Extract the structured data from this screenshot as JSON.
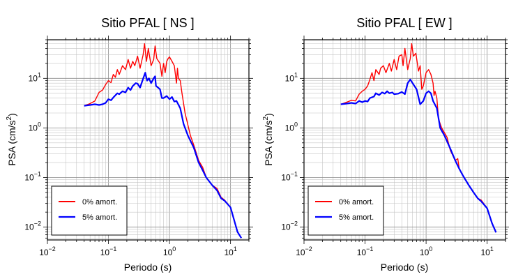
{
  "chart_data": [
    {
      "type": "line",
      "title": "Sitio PFAL [ NS ]",
      "xlabel": "Periodo (s)",
      "ylabel": "PSA (cm/s²)",
      "ylabel_parts": {
        "main": "PSA (cm/s",
        "sup": "2",
        "end": ")"
      },
      "xscale": "log",
      "yscale": "log",
      "xlim": [
        0.01,
        20
      ],
      "ylim": [
        0.0055,
        60
      ],
      "grid": true,
      "legend_position": "bottom-left",
      "x_ticks": [
        {
          "value": 0.01,
          "base": "10",
          "exp": "−2"
        },
        {
          "value": 0.1,
          "base": "10",
          "exp": "−1"
        },
        {
          "value": 1,
          "base": "10",
          "exp": "0"
        },
        {
          "value": 10,
          "base": "10",
          "exp": "1"
        }
      ],
      "y_ticks": [
        {
          "value": 0.01,
          "base": "10",
          "exp": "−2"
        },
        {
          "value": 0.1,
          "base": "10",
          "exp": "−1"
        },
        {
          "value": 1,
          "base": "10",
          "exp": "0"
        },
        {
          "value": 10,
          "base": "10",
          "exp": "1"
        }
      ],
      "series": [
        {
          "name": "0% amort.",
          "color": "#ff0000",
          "points": [
            [
              0.04,
              2.8
            ],
            [
              0.05,
              3.1
            ],
            [
              0.06,
              3.5
            ],
            [
              0.07,
              5.2
            ],
            [
              0.08,
              5.8
            ],
            [
              0.09,
              7.5
            ],
            [
              0.1,
              9
            ],
            [
              0.11,
              8.2
            ],
            [
              0.12,
              12
            ],
            [
              0.13,
              10.5
            ],
            [
              0.14,
              15
            ],
            [
              0.15,
              12
            ],
            [
              0.17,
              18
            ],
            [
              0.19,
              15
            ],
            [
              0.21,
              24
            ],
            [
              0.23,
              16
            ],
            [
              0.25,
              22
            ],
            [
              0.27,
              18
            ],
            [
              0.3,
              28
            ],
            [
              0.33,
              16
            ],
            [
              0.37,
              30
            ],
            [
              0.39,
              50
            ],
            [
              0.42,
              22
            ],
            [
              0.45,
              40
            ],
            [
              0.5,
              18
            ],
            [
              0.55,
              24
            ],
            [
              0.58,
              45
            ],
            [
              0.62,
              25
            ],
            [
              0.7,
              20
            ],
            [
              0.75,
              11
            ],
            [
              0.8,
              20
            ],
            [
              0.85,
              13
            ],
            [
              0.9,
              22
            ],
            [
              0.95,
              25
            ],
            [
              1.0,
              27
            ],
            [
              1.1,
              22
            ],
            [
              1.2,
              18
            ],
            [
              1.3,
              8
            ],
            [
              1.35,
              16
            ],
            [
              1.4,
              10
            ],
            [
              1.5,
              9
            ],
            [
              1.6,
              5
            ],
            [
              1.8,
              2
            ],
            [
              2.2,
              0.7
            ],
            [
              2.5,
              0.45
            ],
            [
              3,
              0.22
            ],
            [
              3.5,
              0.16
            ],
            [
              4,
              0.1
            ],
            [
              5,
              0.07
            ],
            [
              6,
              0.06
            ],
            [
              7,
              0.04
            ],
            [
              8,
              0.035
            ],
            [
              10,
              0.025
            ],
            [
              13,
              0.008
            ],
            [
              15,
              0.006
            ]
          ]
        },
        {
          "name": "5% amort.",
          "color": "#0000ff",
          "points": [
            [
              0.04,
              2.8
            ],
            [
              0.05,
              2.9
            ],
            [
              0.06,
              3.0
            ],
            [
              0.07,
              2.9
            ],
            [
              0.08,
              3.0
            ],
            [
              0.09,
              3.2
            ],
            [
              0.1,
              3.8
            ],
            [
              0.11,
              3.6
            ],
            [
              0.12,
              4.1
            ],
            [
              0.14,
              5
            ],
            [
              0.15,
              4.8
            ],
            [
              0.17,
              5.5
            ],
            [
              0.19,
              5.2
            ],
            [
              0.21,
              6.5
            ],
            [
              0.23,
              5.8
            ],
            [
              0.25,
              7
            ],
            [
              0.28,
              8
            ],
            [
              0.3,
              7.8
            ],
            [
              0.33,
              6.5
            ],
            [
              0.36,
              9
            ],
            [
              0.4,
              13
            ],
            [
              0.43,
              9
            ],
            [
              0.46,
              10
            ],
            [
              0.5,
              8
            ],
            [
              0.55,
              10
            ],
            [
              0.58,
              11
            ],
            [
              0.6,
              7
            ],
            [
              0.65,
              6.5
            ],
            [
              0.7,
              6
            ],
            [
              0.75,
              4
            ],
            [
              0.8,
              4
            ],
            [
              0.9,
              4.4
            ],
            [
              1.0,
              3.8
            ],
            [
              1.1,
              4.2
            ],
            [
              1.2,
              3.4
            ],
            [
              1.3,
              3.5
            ],
            [
              1.5,
              2.5
            ],
            [
              1.7,
              1.2
            ],
            [
              2,
              0.7
            ],
            [
              2.5,
              0.4
            ],
            [
              3,
              0.2
            ],
            [
              3.5,
              0.14
            ],
            [
              4,
              0.1
            ],
            [
              5,
              0.07
            ],
            [
              6,
              0.055
            ],
            [
              7,
              0.038
            ],
            [
              8,
              0.034
            ],
            [
              10,
              0.025
            ],
            [
              13,
              0.008
            ],
            [
              15,
              0.006
            ]
          ]
        }
      ]
    },
    {
      "type": "line",
      "title": "Sitio PFAL [ EW ]",
      "xlabel": "Periodo (s)",
      "ylabel": "PSA (cm/s²)",
      "ylabel_parts": {
        "main": "PSA (cm/s",
        "sup": "2",
        "end": ")"
      },
      "xscale": "log",
      "yscale": "log",
      "xlim": [
        0.01,
        20
      ],
      "ylim": [
        0.0055,
        60
      ],
      "grid": true,
      "legend_position": "bottom-left",
      "x_ticks": [
        {
          "value": 0.01,
          "base": "10",
          "exp": "−2"
        },
        {
          "value": 0.1,
          "base": "10",
          "exp": "−1"
        },
        {
          "value": 1,
          "base": "10",
          "exp": "0"
        },
        {
          "value": 10,
          "base": "10",
          "exp": "1"
        }
      ],
      "y_ticks": [
        {
          "value": 0.01,
          "base": "10",
          "exp": "−2"
        },
        {
          "value": 0.1,
          "base": "10",
          "exp": "−1"
        },
        {
          "value": 1,
          "base": "10",
          "exp": "0"
        },
        {
          "value": 10,
          "base": "10",
          "exp": "1"
        }
      ],
      "series": [
        {
          "name": "0% amort.",
          "color": "#ff0000",
          "points": [
            [
              0.04,
              3.0
            ],
            [
              0.05,
              3.3
            ],
            [
              0.06,
              3.6
            ],
            [
              0.07,
              3.5
            ],
            [
              0.08,
              4.8
            ],
            [
              0.09,
              5.5
            ],
            [
              0.1,
              6
            ],
            [
              0.11,
              7
            ],
            [
              0.12,
              9.5
            ],
            [
              0.13,
              13
            ],
            [
              0.14,
              9
            ],
            [
              0.15,
              15
            ],
            [
              0.17,
              12
            ],
            [
              0.18,
              16
            ],
            [
              0.2,
              18
            ],
            [
              0.22,
              13
            ],
            [
              0.25,
              20
            ],
            [
              0.27,
              14
            ],
            [
              0.3,
              24
            ],
            [
              0.33,
              15
            ],
            [
              0.36,
              28
            ],
            [
              0.4,
              30
            ],
            [
              0.42,
              18
            ],
            [
              0.45,
              40
            ],
            [
              0.5,
              15
            ],
            [
              0.55,
              25
            ],
            [
              0.58,
              50
            ],
            [
              0.62,
              28
            ],
            [
              0.68,
              32
            ],
            [
              0.75,
              14
            ],
            [
              0.8,
              18
            ],
            [
              0.85,
              6
            ],
            [
              0.9,
              7
            ],
            [
              1.0,
              13
            ],
            [
              1.1,
              15
            ],
            [
              1.2,
              12
            ],
            [
              1.3,
              8
            ],
            [
              1.35,
              4.5
            ],
            [
              1.4,
              5.5
            ],
            [
              1.5,
              4
            ],
            [
              1.6,
              1.5
            ],
            [
              1.8,
              1.0
            ],
            [
              2.2,
              0.65
            ],
            [
              2.5,
              0.35
            ],
            [
              3,
              0.22
            ],
            [
              3.3,
              0.24
            ],
            [
              3.5,
              0.15
            ],
            [
              4,
              0.11
            ],
            [
              5,
              0.07
            ],
            [
              6,
              0.05
            ],
            [
              7,
              0.038
            ],
            [
              8,
              0.035
            ],
            [
              10,
              0.024
            ],
            [
              12,
              0.012
            ],
            [
              14,
              0.0078
            ]
          ]
        },
        {
          "name": "5% amort.",
          "color": "#0000ff",
          "points": [
            [
              0.04,
              3.0
            ],
            [
              0.05,
              3.1
            ],
            [
              0.06,
              3.2
            ],
            [
              0.07,
              3.1
            ],
            [
              0.08,
              3.5
            ],
            [
              0.09,
              3.3
            ],
            [
              0.1,
              3.5
            ],
            [
              0.11,
              3.4
            ],
            [
              0.12,
              4
            ],
            [
              0.14,
              4.3
            ],
            [
              0.15,
              5
            ],
            [
              0.17,
              4.6
            ],
            [
              0.19,
              5.2
            ],
            [
              0.21,
              4.9
            ],
            [
              0.23,
              5.5
            ],
            [
              0.25,
              5.0
            ],
            [
              0.28,
              5.2
            ],
            [
              0.3,
              4.8
            ],
            [
              0.35,
              4.9
            ],
            [
              0.4,
              5.3
            ],
            [
              0.45,
              4.8
            ],
            [
              0.5,
              8
            ],
            [
              0.55,
              9.5
            ],
            [
              0.6,
              8
            ],
            [
              0.7,
              6
            ],
            [
              0.8,
              3
            ],
            [
              0.9,
              3.5
            ],
            [
              1.0,
              5
            ],
            [
              1.1,
              5.5
            ],
            [
              1.2,
              5
            ],
            [
              1.3,
              3.5
            ],
            [
              1.5,
              2.5
            ],
            [
              1.7,
              1.0
            ],
            [
              2,
              0.7
            ],
            [
              2.5,
              0.38
            ],
            [
              3,
              0.22
            ],
            [
              3.5,
              0.15
            ],
            [
              4,
              0.11
            ],
            [
              5,
              0.07
            ],
            [
              6,
              0.05
            ],
            [
              7,
              0.038
            ],
            [
              8,
              0.033
            ],
            [
              10,
              0.024
            ],
            [
              12,
              0.012
            ],
            [
              14,
              0.0078
            ]
          ]
        }
      ]
    }
  ]
}
